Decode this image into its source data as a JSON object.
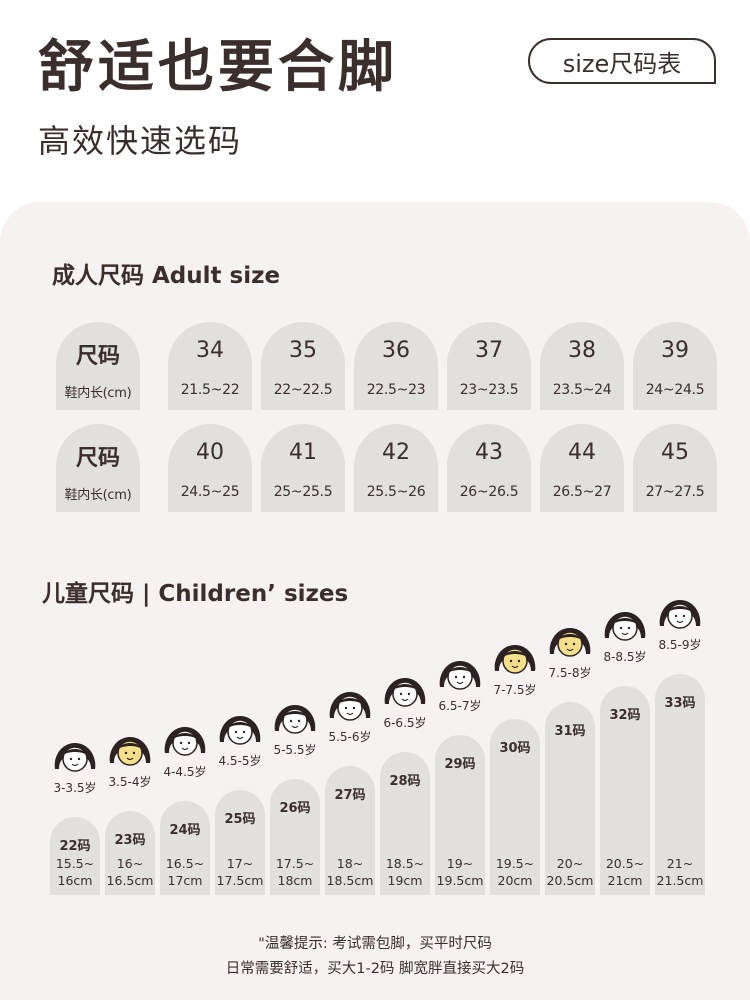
{
  "header": {
    "title": "舒适也要合脚",
    "subtitle": "高效快速选码",
    "size_button": "size尺码表"
  },
  "adult": {
    "section_title": "成人尺码 Adult size",
    "row_label": "尺码",
    "row_sublabel": "鞋内长(cm)",
    "row1": [
      {
        "size": "34",
        "length": "21.5~22"
      },
      {
        "size": "35",
        "length": "22~22.5"
      },
      {
        "size": "36",
        "length": "22.5~23"
      },
      {
        "size": "37",
        "length": "23~23.5"
      },
      {
        "size": "38",
        "length": "23.5~24"
      },
      {
        "size": "39",
        "length": "24~24.5"
      }
    ],
    "row2": [
      {
        "size": "40",
        "length": "24.5~25"
      },
      {
        "size": "41",
        "length": "25~25.5"
      },
      {
        "size": "42",
        "length": "25.5~26"
      },
      {
        "size": "43",
        "length": "26~26.5"
      },
      {
        "size": "44",
        "length": "26.5~27"
      },
      {
        "size": "45",
        "length": "27~27.5"
      }
    ]
  },
  "children": {
    "section_title": "儿童尺码 | Children’ sizes",
    "sizes": [
      {
        "age": "3-3.5岁",
        "code": "22码",
        "length_line1": "15.5~",
        "length_line2": "16cm",
        "face": "girl"
      },
      {
        "age": "3.5-4岁",
        "code": "23码",
        "length_line1": "16~",
        "length_line2": "16.5cm",
        "face": "highlight"
      },
      {
        "age": "4-4.5岁",
        "code": "24码",
        "length_line1": "16.5~",
        "length_line2": "17cm",
        "face": "girl"
      },
      {
        "age": "4.5-5岁",
        "code": "25码",
        "length_line1": "17~",
        "length_line2": "17.5cm",
        "face": "girl"
      },
      {
        "age": "5-5.5岁",
        "code": "26码",
        "length_line1": "17.5~",
        "length_line2": "18cm",
        "face": "girl"
      },
      {
        "age": "5.5-6岁",
        "code": "27码",
        "length_line1": "18~",
        "length_line2": "18.5cm",
        "face": "girl"
      },
      {
        "age": "6-6.5岁",
        "code": "28码",
        "length_line1": "18.5~",
        "length_line2": "19cm",
        "face": "girl"
      },
      {
        "age": "6.5-7岁",
        "code": "29码",
        "length_line1": "19~",
        "length_line2": "19.5cm",
        "face": "girl"
      },
      {
        "age": "7-7.5岁",
        "code": "30码",
        "length_line1": "19.5~",
        "length_line2": "20cm",
        "face": "highlight"
      },
      {
        "age": "7.5-8岁",
        "code": "31码",
        "length_line1": "20~",
        "length_line2": "20.5cm",
        "face": "highlight"
      },
      {
        "age": "8-8.5岁",
        "code": "32码",
        "length_line1": "20.5~",
        "length_line2": "21cm",
        "face": "girl"
      },
      {
        "age": "8.5-9岁",
        "code": "33码",
        "length_line1": "21~",
        "length_line2": "21.5cm",
        "face": "girl"
      }
    ]
  },
  "tips": {
    "line1": "\"温馨提示: 考试需包脚，买平时尺码",
    "line2": "日常需要舒适，买大1-2码 脚宽胖直接买大2码"
  },
  "colors": {
    "text": "#3a2f2c",
    "panel": "#f6f2f1",
    "cell": "#e2dfdf",
    "highlight": "#f6df8a"
  }
}
